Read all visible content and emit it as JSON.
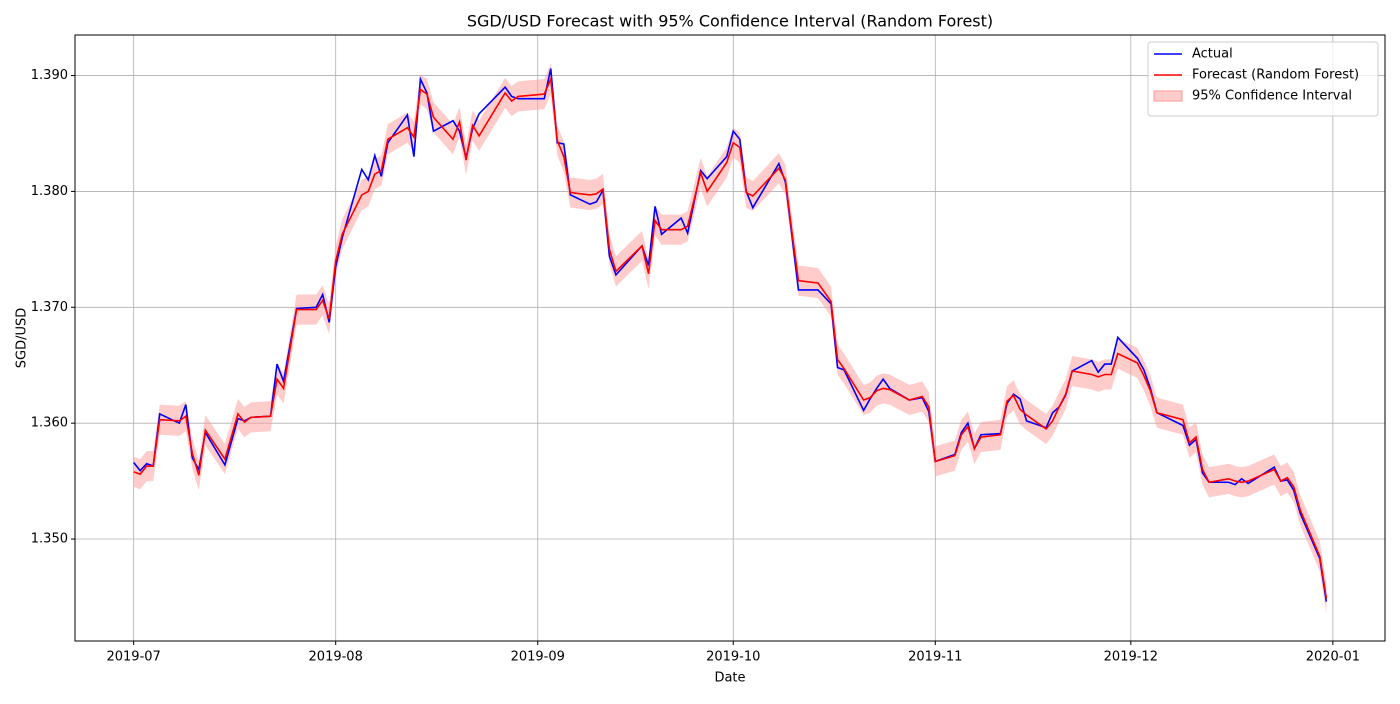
{
  "chart_data": {
    "type": "line",
    "title": "SGD/USD Forecast with 95% Confidence Interval (Random Forest)",
    "xlabel": "Date",
    "ylabel": "SGD/USD",
    "x": [
      "2019-07-01",
      "2019-07-02",
      "2019-07-03",
      "2019-07-04",
      "2019-07-05",
      "2019-07-08",
      "2019-07-09",
      "2019-07-10",
      "2019-07-11",
      "2019-07-12",
      "2019-07-15",
      "2019-07-17",
      "2019-07-18",
      "2019-07-19",
      "2019-07-22",
      "2019-07-23",
      "2019-07-24",
      "2019-07-26",
      "2019-07-29",
      "2019-07-30",
      "2019-07-31",
      "2019-08-01",
      "2019-08-02",
      "2019-08-05",
      "2019-08-06",
      "2019-08-07",
      "2019-08-08",
      "2019-08-09",
      "2019-08-12",
      "2019-08-13",
      "2019-08-14",
      "2019-08-15",
      "2019-08-16",
      "2019-08-19",
      "2019-08-20",
      "2019-08-21",
      "2019-08-22",
      "2019-08-23",
      "2019-08-27",
      "2019-08-28",
      "2019-08-29",
      "2019-09-02",
      "2019-09-03",
      "2019-09-04",
      "2019-09-05",
      "2019-09-06",
      "2019-09-09",
      "2019-09-10",
      "2019-09-11",
      "2019-09-12",
      "2019-09-13",
      "2019-09-17",
      "2019-09-18",
      "2019-09-19",
      "2019-09-20",
      "2019-09-23",
      "2019-09-24",
      "2019-09-26",
      "2019-09-27",
      "2019-09-30",
      "2019-10-01",
      "2019-10-02",
      "2019-10-03",
      "2019-10-04",
      "2019-10-08",
      "2019-10-09",
      "2019-10-10",
      "2019-10-11",
      "2019-10-14",
      "2019-10-16",
      "2019-10-17",
      "2019-10-18",
      "2019-10-21",
      "2019-10-22",
      "2019-10-23",
      "2019-10-24",
      "2019-10-25",
      "2019-10-28",
      "2019-10-30",
      "2019-10-31",
      "2019-11-01",
      "2019-11-04",
      "2019-11-05",
      "2019-11-06",
      "2019-11-07",
      "2019-11-08",
      "2019-11-11",
      "2019-11-12",
      "2019-11-13",
      "2019-11-14",
      "2019-11-15",
      "2019-11-18",
      "2019-11-19",
      "2019-11-20",
      "2019-11-21",
      "2019-11-22",
      "2019-11-25",
      "2019-11-26",
      "2019-11-27",
      "2019-11-28",
      "2019-11-29",
      "2019-12-02",
      "2019-12-03",
      "2019-12-04",
      "2019-12-05",
      "2019-12-09",
      "2019-12-10",
      "2019-12-11",
      "2019-12-12",
      "2019-12-13",
      "2019-12-16",
      "2019-12-17",
      "2019-12-18",
      "2019-12-19",
      "2019-12-23",
      "2019-12-24",
      "2019-12-25",
      "2019-12-26",
      "2019-12-27",
      "2019-12-30",
      "2019-12-31"
    ],
    "series": [
      {
        "name": "Actual",
        "color": "#0000ff",
        "values": [
          1.3566,
          1.3559,
          1.3565,
          1.3563,
          1.3608,
          1.36,
          1.3616,
          1.357,
          1.356,
          1.3592,
          1.3564,
          1.3604,
          1.3602,
          1.3605,
          1.3606,
          1.3651,
          1.3636,
          1.3699,
          1.37,
          1.3711,
          1.3687,
          1.3735,
          1.376,
          1.3819,
          1.381,
          1.3831,
          1.3813,
          1.3842,
          1.3866,
          1.383,
          1.3897,
          1.3885,
          1.3852,
          1.3861,
          1.3852,
          1.3829,
          1.3854,
          1.3867,
          1.389,
          1.3882,
          1.388,
          1.388,
          1.3906,
          1.3842,
          1.3841,
          1.3797,
          1.3789,
          1.3791,
          1.3801,
          1.3744,
          1.3728,
          1.3753,
          1.3736,
          1.3787,
          1.3763,
          1.3777,
          1.3764,
          1.3818,
          1.3811,
          1.383,
          1.3852,
          1.3845,
          1.38,
          1.3786,
          1.3824,
          1.3808,
          1.3762,
          1.3715,
          1.3715,
          1.3703,
          1.3648,
          1.3646,
          1.3611,
          1.3621,
          1.363,
          1.3638,
          1.363,
          1.362,
          1.3622,
          1.361,
          1.3567,
          1.3573,
          1.3592,
          1.36,
          1.3578,
          1.359,
          1.3591,
          1.3617,
          1.3625,
          1.3621,
          1.3602,
          1.3596,
          1.3609,
          1.3614,
          1.3624,
          1.3645,
          1.3654,
          1.3644,
          1.3651,
          1.3651,
          1.3674,
          1.3656,
          1.3646,
          1.363,
          1.3609,
          1.3598,
          1.3581,
          1.3586,
          1.3557,
          1.3549,
          1.3549,
          1.3547,
          1.3552,
          1.3548,
          1.3562,
          1.355,
          1.3551,
          1.3542,
          1.3522,
          1.3483,
          1.3446
        ]
      },
      {
        "name": "Forecast (Random Forest)",
        "color": "#ff0000",
        "values": [
          1.3558,
          1.3556,
          1.3563,
          1.3563,
          1.3603,
          1.3602,
          1.3606,
          1.3574,
          1.3555,
          1.3594,
          1.3569,
          1.3608,
          1.3601,
          1.3605,
          1.3606,
          1.3638,
          1.363,
          1.3698,
          1.3698,
          1.3706,
          1.369,
          1.374,
          1.3763,
          1.3797,
          1.38,
          1.3815,
          1.3818,
          1.3845,
          1.3855,
          1.3847,
          1.3888,
          1.3884,
          1.3864,
          1.3845,
          1.386,
          1.3827,
          1.3857,
          1.3848,
          1.3885,
          1.3878,
          1.3882,
          1.3884,
          1.3897,
          1.3844,
          1.383,
          1.3799,
          1.3797,
          1.3798,
          1.3802,
          1.375,
          1.3731,
          1.3753,
          1.3729,
          1.3775,
          1.3767,
          1.3767,
          1.377,
          1.3816,
          1.38,
          1.3825,
          1.3842,
          1.3838,
          1.3799,
          1.3796,
          1.382,
          1.381,
          1.3765,
          1.3723,
          1.3721,
          1.3705,
          1.3655,
          1.3647,
          1.362,
          1.3622,
          1.3628,
          1.363,
          1.3629,
          1.362,
          1.3623,
          1.3614,
          1.3567,
          1.3572,
          1.359,
          1.3597,
          1.3578,
          1.3588,
          1.359,
          1.3619,
          1.3624,
          1.3612,
          1.3607,
          1.3595,
          1.3602,
          1.3614,
          1.3625,
          1.3645,
          1.3642,
          1.364,
          1.3642,
          1.3642,
          1.366,
          1.3652,
          1.3641,
          1.3628,
          1.3609,
          1.3603,
          1.3583,
          1.3588,
          1.356,
          1.3549,
          1.3552,
          1.355,
          1.3549,
          1.355,
          1.356,
          1.355,
          1.3553,
          1.3545,
          1.3525,
          1.3485,
          1.3449
        ]
      },
      {
        "name": "95% Confidence Interval",
        "color": "#ff9999",
        "error": 0.0013
      }
    ],
    "xlim": [
      "2019-06-22",
      "2020-01-09"
    ],
    "xticks": [
      {
        "value": "2019-07-01",
        "label": "2019-07"
      },
      {
        "value": "2019-08-01",
        "label": "2019-08"
      },
      {
        "value": "2019-09-01",
        "label": "2019-09"
      },
      {
        "value": "2019-10-01",
        "label": "2019-10"
      },
      {
        "value": "2019-11-01",
        "label": "2019-11"
      },
      {
        "value": "2019-12-01",
        "label": "2019-12"
      },
      {
        "value": "2020-01-01",
        "label": "2020-01"
      }
    ],
    "ylim": [
      1.3412,
      1.3935
    ],
    "yticks": [
      {
        "value": 1.35,
        "label": "1.350"
      },
      {
        "value": 1.36,
        "label": "1.360"
      },
      {
        "value": 1.37,
        "label": "1.370"
      },
      {
        "value": 1.38,
        "label": "1.380"
      },
      {
        "value": 1.39,
        "label": "1.390"
      }
    ],
    "grid": true,
    "legend": "upper right"
  }
}
